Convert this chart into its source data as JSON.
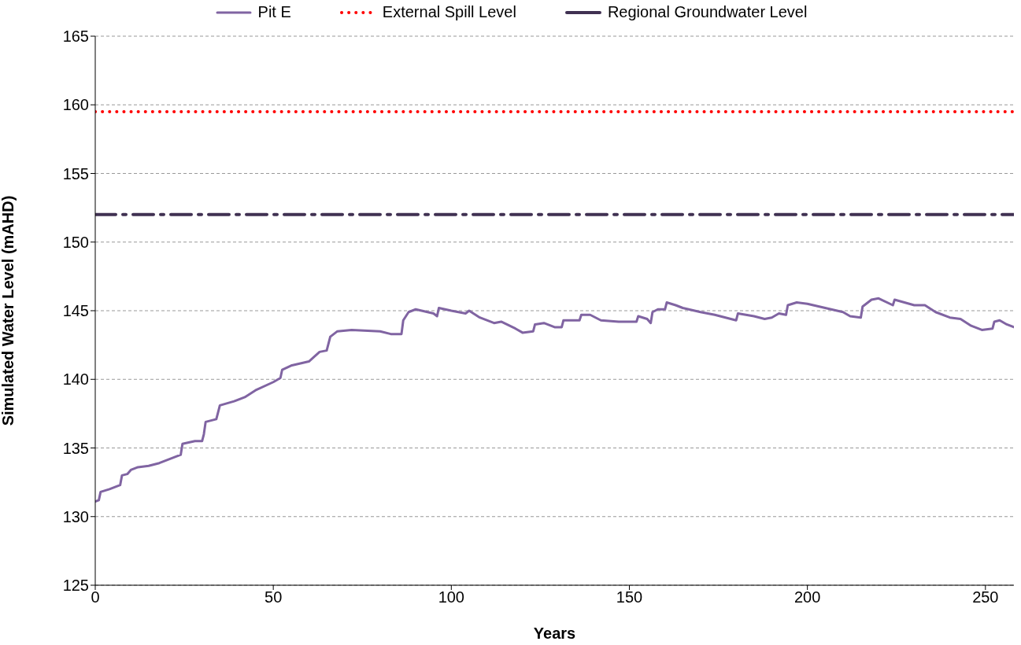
{
  "chart_data": {
    "type": "line",
    "xlabel": "Years",
    "ylabel": "Simulated Water Level (mAHD)",
    "xlim": [
      0,
      258
    ],
    "xticks": [
      0,
      50,
      100,
      150,
      200,
      250
    ],
    "ylim": [
      125,
      165
    ],
    "yticks": [
      125,
      130,
      135,
      140,
      145,
      150,
      155,
      160,
      165
    ],
    "grid": "y",
    "legend": "top",
    "marker": "none",
    "series": [
      {
        "name": "Pit E",
        "color": "#8064a2",
        "line_style": "solid",
        "x": [
          0,
          1,
          1.5,
          4,
          7,
          7.5,
          9,
          10,
          12,
          15,
          18,
          22,
          24,
          24.5,
          28,
          30,
          30.5,
          31,
          34,
          35,
          39,
          42,
          45,
          50,
          52,
          52.5,
          55,
          60,
          63,
          65,
          66,
          68,
          72,
          80,
          83,
          86,
          86.5,
          88,
          90,
          95,
          96,
          96.5,
          100,
          104,
          105,
          108,
          112,
          114,
          118,
          120,
          123,
          123.5,
          126,
          129,
          131,
          131.5,
          136,
          136.5,
          139,
          142,
          147,
          152,
          152.5,
          155,
          156,
          156.5,
          158,
          160,
          160.5,
          163,
          165,
          170,
          174,
          180,
          180.5,
          185,
          188,
          190,
          192,
          194,
          194.5,
          197,
          200,
          205,
          210,
          212,
          215,
          215.5,
          218,
          220,
          224,
          224.5,
          230,
          233,
          236,
          240,
          243,
          246,
          249,
          252,
          252.5,
          254,
          256,
          258
        ],
        "values": [
          131.1,
          131.2,
          131.8,
          132.0,
          132.3,
          133.0,
          133.1,
          133.4,
          133.6,
          133.7,
          133.9,
          134.3,
          134.5,
          135.3,
          135.5,
          135.5,
          136.0,
          136.9,
          137.1,
          138.1,
          138.4,
          138.7,
          139.2,
          139.8,
          140.1,
          140.7,
          141.0,
          141.3,
          142.0,
          142.1,
          143.1,
          143.5,
          143.6,
          143.5,
          143.3,
          143.3,
          144.3,
          144.9,
          145.1,
          144.8,
          144.6,
          145.2,
          145.0,
          144.8,
          145.0,
          144.5,
          144.1,
          144.2,
          143.7,
          143.4,
          143.5,
          144.0,
          144.1,
          143.8,
          143.8,
          144.3,
          144.3,
          144.7,
          144.7,
          144.3,
          144.2,
          144.2,
          144.6,
          144.4,
          144.1,
          144.9,
          145.1,
          145.1,
          145.6,
          145.4,
          145.2,
          144.9,
          144.7,
          144.3,
          144.8,
          144.6,
          144.4,
          144.5,
          144.8,
          144.7,
          145.4,
          145.6,
          145.5,
          145.2,
          144.9,
          144.6,
          144.5,
          145.3,
          145.8,
          145.9,
          145.4,
          145.8,
          145.4,
          145.4,
          144.9,
          144.5,
          144.4,
          143.9,
          143.6,
          143.7,
          144.2,
          144.3,
          144.0,
          143.8
        ]
      },
      {
        "name": "External Spill Level",
        "color": "#ff0000",
        "line_style": "dotted",
        "x": [
          0,
          258
        ],
        "values": [
          159.5,
          159.5
        ]
      },
      {
        "name": "Regional Groundwater Level",
        "color": "#403152",
        "line_style": "dashed",
        "x": [
          0,
          258
        ],
        "values": [
          152,
          152
        ]
      }
    ]
  }
}
